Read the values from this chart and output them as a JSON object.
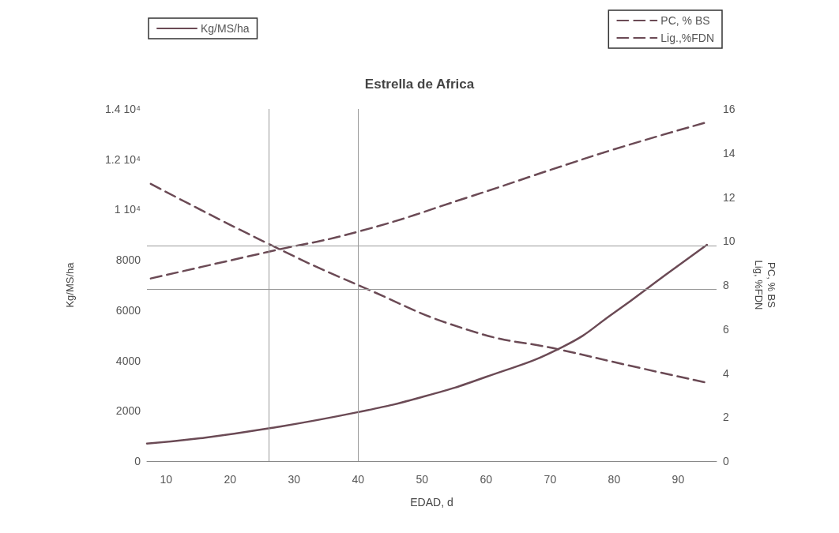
{
  "chart_data": {
    "type": "line",
    "title": "Estrella de Africa",
    "xlabel": "EDAD, d",
    "ylabel": "Kg/MS/ha",
    "y2label": "PC, % BS\nLig, %FDN",
    "xlim": [
      7,
      96
    ],
    "xticks": [
      10,
      20,
      30,
      40,
      50,
      60,
      70,
      80,
      90
    ],
    "ylim": [
      0,
      14000
    ],
    "yticks": [
      0,
      2000,
      4000,
      6000,
      8000,
      {
        "value": 10000,
        "label": "1 10⁴"
      },
      {
        "value": 12000,
        "label": "1.2 10⁴"
      },
      {
        "value": 14000,
        "label": "1.4 10⁴"
      }
    ],
    "y2lim": [
      0,
      16
    ],
    "y2ticks": [
      0,
      2,
      4,
      6,
      8,
      10,
      12,
      14,
      16
    ],
    "grid": false,
    "legend": "top",
    "marker": "none",
    "series": [
      {
        "name": "Kg/MS/ha",
        "color": "#6b4a55",
        "line_style": "solid",
        "x": [
          7,
          15,
          26,
          40,
          50,
          60,
          72,
          80,
          88,
          94.5
        ],
        "values": [
          700,
          900,
          1300,
          1950,
          2550,
          3350,
          4550,
          5900,
          7400,
          8600
        ]
      },
      {
        "name": "PC, % BS",
        "color": "#6b4a55",
        "line_style": "dashed",
        "axis": "y2",
        "x": [
          7.6,
          25.8,
          40.3,
          57.3,
          71.8,
          81.5,
          94.5
        ],
        "values": [
          12.6,
          9.9,
          7.96,
          5.95,
          5.05,
          4.4,
          3.56
        ]
      },
      {
        "name": "Lig.,%FDN",
        "color": "#6b4a55",
        "line_style": "dashed",
        "axis": "y2",
        "x": [
          7.6,
          25.8,
          40.3,
          57.3,
          71.8,
          81.5,
          94.5
        ],
        "values": [
          8.3,
          9.5,
          10.45,
          12.0,
          13.4,
          14.3,
          15.4
        ]
      }
    ],
    "ref_lines": [
      {
        "axis": "x",
        "value": 26,
        "color": "#999999"
      },
      {
        "axis": "x",
        "value": 40,
        "color": "#999999"
      },
      {
        "axis": "y2",
        "value": 9.8,
        "color": "#999999"
      },
      {
        "axis": "y2",
        "value": 7.8,
        "color": "#999999"
      }
    ]
  }
}
